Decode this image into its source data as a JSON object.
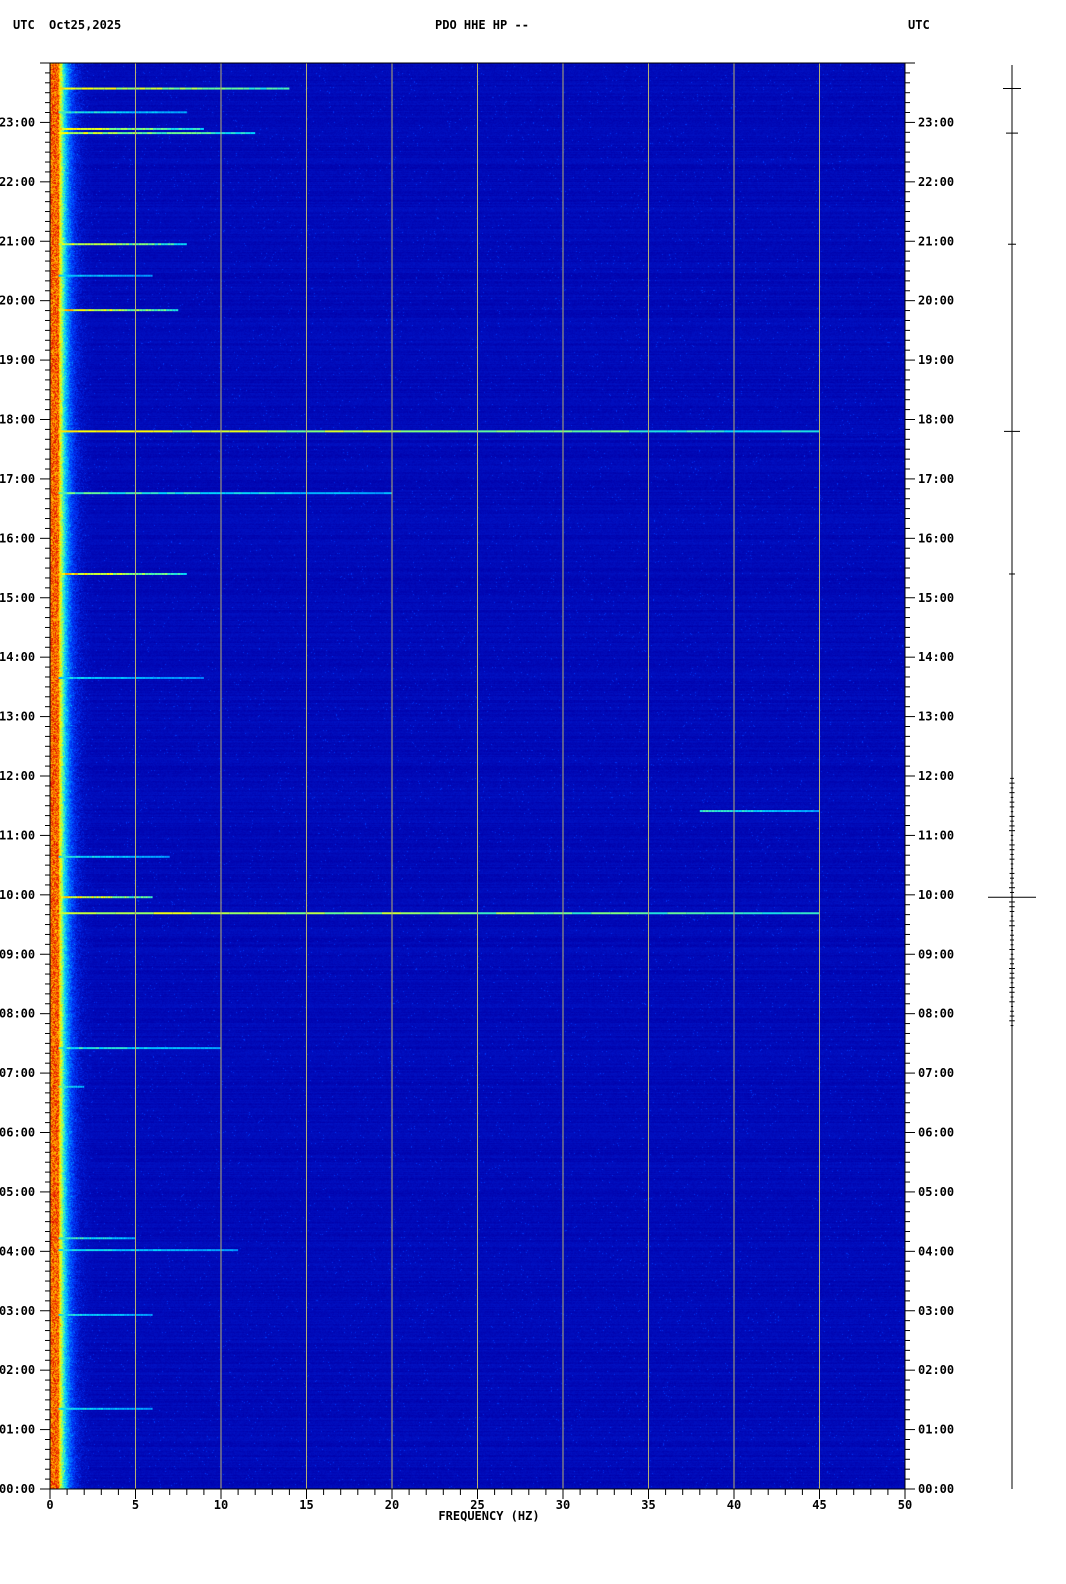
{
  "header": {
    "left_tz": "UTC",
    "date": "Oct25,2025",
    "station": "PDO HHE HP --",
    "right_tz": "UTC"
  },
  "chart_data": {
    "type": "heatmap",
    "title": "PDO HHE HP --",
    "xlabel": "FREQUENCY (HZ)",
    "ylabel": "",
    "xlim": [
      0,
      50
    ],
    "ylim_hours": [
      0,
      24
    ],
    "x_ticks": [
      "0",
      "5",
      "10",
      "15",
      "20",
      "25",
      "30",
      "35",
      "40",
      "45",
      "50"
    ],
    "y_ticks": [
      "00:00",
      "01:00",
      "02:00",
      "03:00",
      "04:00",
      "05:00",
      "06:00",
      "07:00",
      "08:00",
      "09:00",
      "10:00",
      "11:00",
      "12:00",
      "13:00",
      "14:00",
      "15:00",
      "16:00",
      "17:00",
      "18:00",
      "19:00",
      "20:00",
      "21:00",
      "22:00",
      "23:00"
    ],
    "grid": true,
    "grid_step_hz": 5,
    "colormap": [
      "#000080",
      "#0000c8",
      "#0050ff",
      "#00c8ff",
      "#80ff80",
      "#ffff00",
      "#ff8000",
      "#e00000"
    ],
    "background_color": "#0000a0",
    "low_frequency_energy_band_hz": [
      0,
      2
    ],
    "bands": [
      {
        "time_h": 23.57,
        "f_max": 14,
        "level": 0.9
      },
      {
        "time_h": 23.17,
        "f_max": 8,
        "level": 0.5
      },
      {
        "time_h": 22.89,
        "f_max": 9,
        "level": 0.85
      },
      {
        "time_h": 22.82,
        "f_max": 12,
        "level": 0.8
      },
      {
        "time_h": 20.95,
        "f_max": 8,
        "level": 0.85
      },
      {
        "time_h": 20.42,
        "f_max": 6,
        "level": 0.4
      },
      {
        "time_h": 19.84,
        "f_max": 7.5,
        "level": 0.95
      },
      {
        "time_h": 17.8,
        "f_max": 45,
        "level": 0.85
      },
      {
        "time_h": 16.76,
        "f_max": 20,
        "level": 0.55
      },
      {
        "time_h": 15.4,
        "f_max": 8,
        "level": 0.95
      },
      {
        "time_h": 13.65,
        "f_max": 9,
        "level": 0.4
      },
      {
        "time_h": 11.41,
        "f_max": 45,
        "f_min": 38,
        "level": 0.5
      },
      {
        "time_h": 10.64,
        "f_max": 7,
        "level": 0.45
      },
      {
        "time_h": 9.96,
        "f_max": 6,
        "level": 0.95
      },
      {
        "time_h": 9.69,
        "f_max": 45,
        "level": 0.85
      },
      {
        "time_h": 7.42,
        "f_max": 10,
        "level": 0.5
      },
      {
        "time_h": 6.77,
        "f_max": 2,
        "level": 0.6
      },
      {
        "time_h": 4.22,
        "f_max": 5,
        "level": 0.55
      },
      {
        "time_h": 4.02,
        "f_max": 11,
        "level": 0.45
      },
      {
        "time_h": 2.93,
        "f_max": 6,
        "level": 0.45
      },
      {
        "time_h": 1.35,
        "f_max": 6,
        "level": 0.45
      }
    ],
    "seismogram_spikes": [
      {
        "time_h": 23.57,
        "amp": 9
      },
      {
        "time_h": 22.82,
        "amp": 6
      },
      {
        "time_h": 20.95,
        "amp": 4
      },
      {
        "time_h": 17.8,
        "amp": 8
      },
      {
        "time_h": 15.4,
        "amp": 3
      },
      {
        "time_h": 9.96,
        "amp": 24
      }
    ]
  }
}
